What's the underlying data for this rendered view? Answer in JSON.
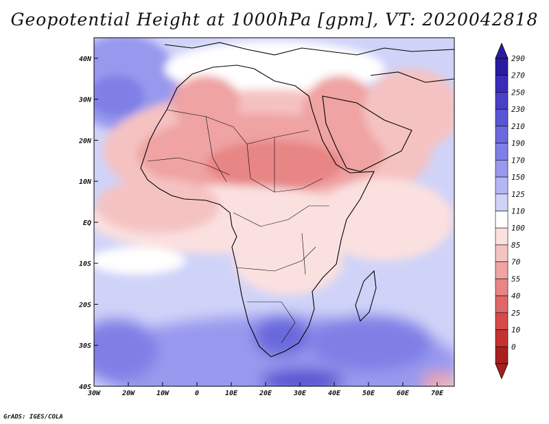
{
  "title": "Geopotential Height at 1000hPa [gpm], VT: 2020042818",
  "credit": "GrADS: IGES/COLA",
  "map": {
    "variable": "Geopotential Height",
    "level": "1000hPa",
    "units": "gpm",
    "valid_time": "2020042818",
    "lon_range": [
      -30,
      75
    ],
    "lat_range": [
      -40,
      45
    ],
    "lon_ticks": [
      {
        "value": -30,
        "label": "30W"
      },
      {
        "value": -20,
        "label": "20W"
      },
      {
        "value": -10,
        "label": "10W"
      },
      {
        "value": 0,
        "label": "0"
      },
      {
        "value": 10,
        "label": "10E"
      },
      {
        "value": 20,
        "label": "20E"
      },
      {
        "value": 30,
        "label": "30E"
      },
      {
        "value": 40,
        "label": "40E"
      },
      {
        "value": 50,
        "label": "50E"
      },
      {
        "value": 60,
        "label": "60E"
      },
      {
        "value": 70,
        "label": "70E"
      }
    ],
    "lat_ticks": [
      {
        "value": 40,
        "label": "40N"
      },
      {
        "value": 30,
        "label": "30N"
      },
      {
        "value": 20,
        "label": "20N"
      },
      {
        "value": 10,
        "label": "10N"
      },
      {
        "value": 0,
        "label": "EQ"
      },
      {
        "value": -10,
        "label": "10S"
      },
      {
        "value": -20,
        "label": "20S"
      },
      {
        "value": -30,
        "label": "30S"
      },
      {
        "value": -40,
        "label": "40S"
      }
    ]
  },
  "colorbar": {
    "labels": [
      "290",
      "270",
      "250",
      "230",
      "210",
      "190",
      "170",
      "150",
      "125",
      "110",
      "100",
      "85",
      "70",
      "55",
      "40",
      "25",
      "10",
      "0"
    ],
    "colors": [
      "#2a1ca0",
      "#3a2cb8",
      "#4a40c8",
      "#5a55d2",
      "#6b69dc",
      "#7f7fe6",
      "#9899ee",
      "#b4b6f4",
      "#d0d3f8",
      "#ffffff",
      "#fbe0e0",
      "#f5c2c2",
      "#efa3a3",
      "#e88585",
      "#e06767",
      "#d64a4a",
      "#c43232",
      "#a81f1f"
    ]
  },
  "colors": {
    "land_outline": "#000000",
    "frame": "#000000"
  }
}
